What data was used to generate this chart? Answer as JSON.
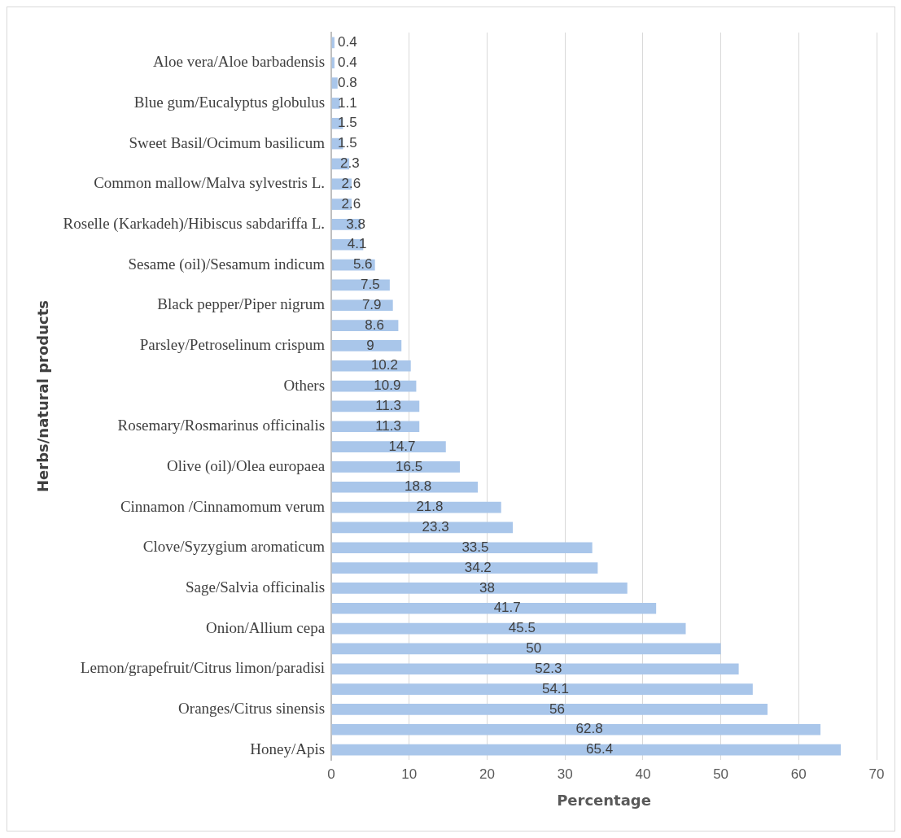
{
  "chart_data": {
    "type": "bar",
    "orientation": "horizontal",
    "xlabel": "Percentage",
    "ylabel": "Herbs/natural products",
    "categories": [
      null,
      "Aloe vera/Aloe barbadensis",
      null,
      "Blue gum/Eucalyptus globulus",
      null,
      "Sweet Basil/Ocimum basilicum",
      null,
      "Common mallow/Malva sylvestris L.",
      null,
      "Roselle (Karkadeh)/Hibiscus sabdariffa L.",
      null,
      "Sesame (oil)/Sesamum indicum",
      null,
      "Black pepper/Piper nigrum",
      null,
      "Parsley/Petroselinum crispum",
      null,
      "Others",
      null,
      "Rosemary/Rosmarinus officinalis",
      null,
      "Olive (oil)/Olea europaea",
      null,
      "Cinnamon /Cinnamomum verum",
      null,
      "Clove/Syzygium aromaticum",
      null,
      "Sage/Salvia officinalis",
      null,
      "Onion/Allium cepa",
      null,
      "Lemon/grapefruit/Citrus limon/paradisi",
      null,
      "Oranges/Citrus sinensis",
      null,
      "Honey/Apis"
    ],
    "values": [
      0.4,
      0.4,
      0.8,
      1.1,
      1.5,
      1.5,
      2.3,
      2.6,
      2.6,
      3.8,
      4.1,
      5.6,
      7.5,
      7.9,
      8.6,
      9,
      10.2,
      10.9,
      11.3,
      11.3,
      14.7,
      16.5,
      18.8,
      21.8,
      23.3,
      33.5,
      34.2,
      38,
      41.7,
      45.5,
      50,
      52.3,
      54.1,
      56,
      62.8,
      65.4
    ],
    "color": "#a9c6ea",
    "xlim": [
      0,
      70
    ],
    "xticks": [
      0,
      10,
      20,
      30,
      40,
      50,
      60,
      70
    ],
    "grid": "x",
    "data_labels": true
  }
}
